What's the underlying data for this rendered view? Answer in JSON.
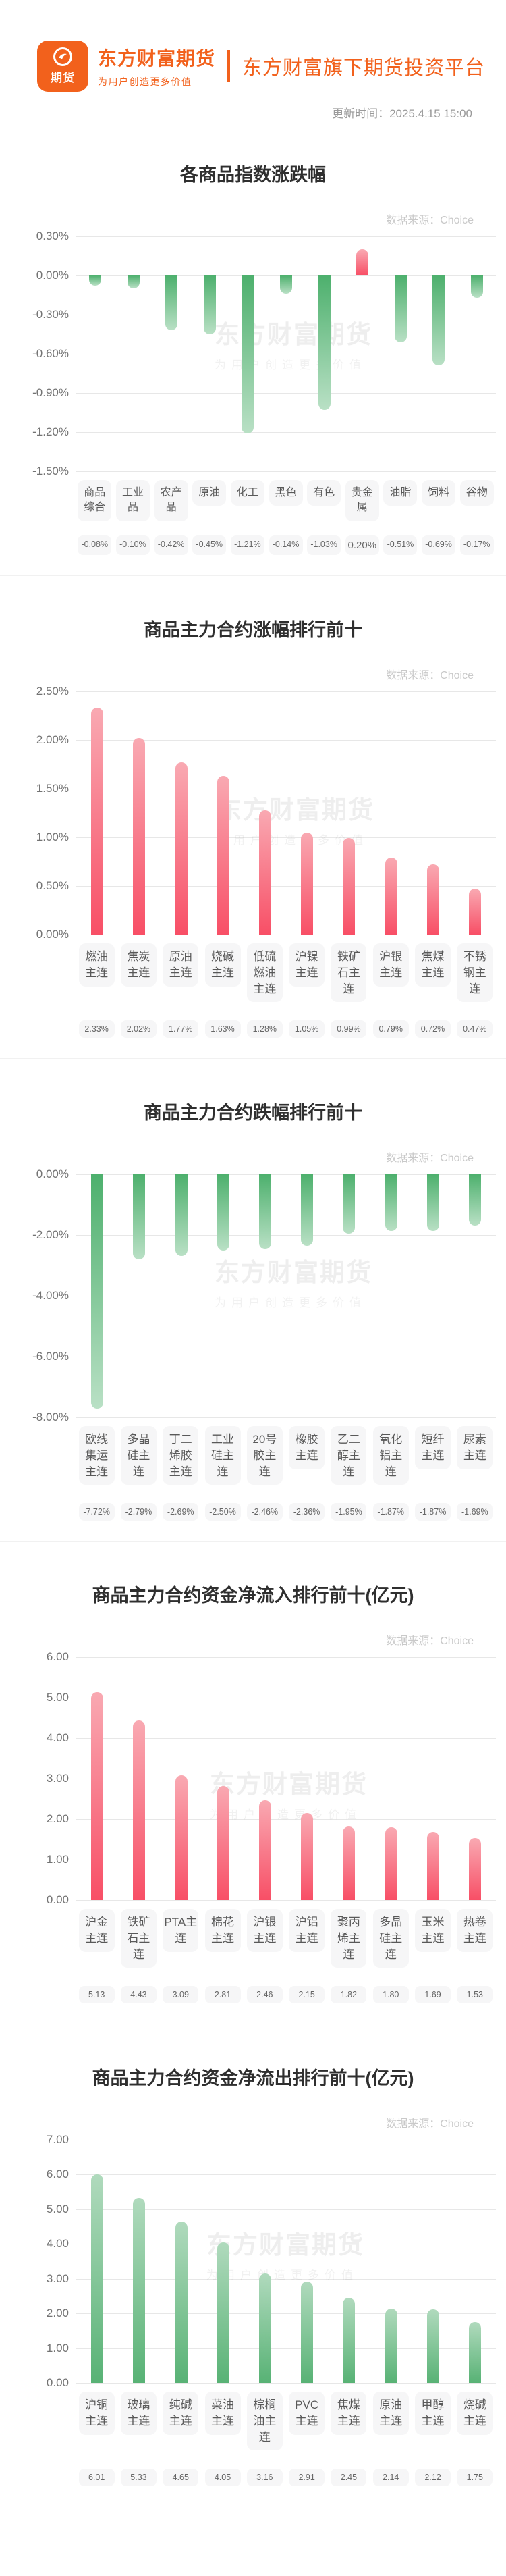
{
  "header": {
    "logo_badge": "期货",
    "brand_name": "东方财富期货",
    "brand_tagline": "为用户创造更多价值",
    "platform_title": "东方财富旗下期货投资平台",
    "update_time": "更新时间：2025.4.15 15:00"
  },
  "watermark": {
    "line1": "东方财富期货",
    "line2": "为用户创造更多价值"
  },
  "colors": {
    "brand_orange": "#f2611c",
    "bar_red_strong": "#f84f66",
    "bar_red_light": "#f9a9b2",
    "bar_green_strong": "#4db06d",
    "bar_green_light": "#b9e0c5"
  },
  "chart_data": [
    {
      "type": "bar",
      "title": "各商品指数涨跌幅",
      "source": "数据来源：Choice",
      "categories": [
        "商品综合",
        "工业品",
        "农产品",
        "原油",
        "化工",
        "黑色",
        "有色",
        "贵金属",
        "油脂",
        "饲料",
        "谷物"
      ],
      "values": [
        -0.08,
        -0.1,
        -0.42,
        -0.45,
        -1.21,
        -0.14,
        -1.03,
        0.2,
        -0.51,
        -0.69,
        -0.17
      ],
      "value_labels": [
        "-0.08%",
        "-0.10%",
        "-0.42%",
        "-0.45%",
        "-1.21%",
        "-0.14%",
        "-1.03%",
        "0.20%",
        "-0.51%",
        "-0.69%",
        "-0.17%"
      ],
      "ylim": [
        -1.5,
        0.3
      ],
      "yticks": [
        0.3,
        0.0,
        -0.3,
        -0.6,
        -0.9,
        -1.2,
        -1.5
      ],
      "ytick_labels": [
        "0.30%",
        "0.00%",
        "-0.30%",
        "-0.60%",
        "-0.90%",
        "-1.20%",
        "-1.50%"
      ],
      "bar_color": "auto",
      "grid": true,
      "legend": false
    },
    {
      "type": "bar",
      "title": "商品主力合约涨幅排行前十",
      "source": "数据来源：Choice",
      "categories": [
        "燃油主连",
        "焦炭主连",
        "原油主连",
        "烧碱主连",
        "低硫燃油主连",
        "沪镍主连",
        "铁矿石主连",
        "沪银主连",
        "焦煤主连",
        "不锈钢主连"
      ],
      "values": [
        2.33,
        2.02,
        1.77,
        1.63,
        1.28,
        1.05,
        0.99,
        0.79,
        0.72,
        0.47
      ],
      "value_labels": [
        "2.33%",
        "2.02%",
        "1.77%",
        "1.63%",
        "1.28%",
        "1.05%",
        "0.99%",
        "0.79%",
        "0.72%",
        "0.47%"
      ],
      "ylim": [
        0,
        2.5
      ],
      "yticks": [
        2.5,
        2.0,
        1.5,
        1.0,
        0.5,
        0.0
      ],
      "ytick_labels": [
        "2.50%",
        "2.00%",
        "1.50%",
        "1.00%",
        "0.50%",
        "0.00%"
      ],
      "bar_color": "red",
      "grid": true,
      "legend": false
    },
    {
      "type": "bar",
      "title": "商品主力合约跌幅排行前十",
      "source": "数据来源：Choice",
      "categories": [
        "欧线集运主连",
        "多晶硅主连",
        "丁二烯胶主连",
        "工业硅主连",
        "20号胶主连",
        "橡胶主连",
        "乙二醇主连",
        "氧化铝主连",
        "短纤主连",
        "尿素主连"
      ],
      "values": [
        -7.72,
        -2.79,
        -2.69,
        -2.5,
        -2.46,
        -2.36,
        -1.95,
        -1.87,
        -1.87,
        -1.69
      ],
      "value_labels": [
        "-7.72%",
        "-2.79%",
        "-2.69%",
        "-2.50%",
        "-2.46%",
        "-2.36%",
        "-1.95%",
        "-1.87%",
        "-1.87%",
        "-1.69%"
      ],
      "ylim": [
        -8,
        0
      ],
      "yticks": [
        0,
        -2,
        -4,
        -6,
        -8
      ],
      "ytick_labels": [
        "0.00%",
        "-2.00%",
        "-4.00%",
        "-6.00%",
        "-8.00%"
      ],
      "bar_color": "green",
      "grid": true,
      "legend": false
    },
    {
      "type": "bar",
      "title": "商品主力合约资金净流入排行前十(亿元)",
      "source": "数据来源：Choice",
      "categories": [
        "沪金主连",
        "铁矿石主连",
        "PTA主连",
        "棉花主连",
        "沪银主连",
        "沪铝主连",
        "聚丙烯主连",
        "多晶硅主连",
        "玉米主连",
        "热卷主连"
      ],
      "values": [
        5.13,
        4.43,
        3.09,
        2.81,
        2.46,
        2.15,
        1.82,
        1.8,
        1.69,
        1.53
      ],
      "value_labels": [
        "5.13",
        "4.43",
        "3.09",
        "2.81",
        "2.46",
        "2.15",
        "1.82",
        "1.80",
        "1.69",
        "1.53"
      ],
      "ylim": [
        0,
        6
      ],
      "yticks": [
        6,
        5,
        4,
        3,
        2,
        1,
        0
      ],
      "ytick_labels": [
        "6.00",
        "5.00",
        "4.00",
        "3.00",
        "2.00",
        "1.00",
        "0.00"
      ],
      "bar_color": "red",
      "grid": true,
      "legend": false
    },
    {
      "type": "bar",
      "title": "商品主力合约资金净流出排行前十(亿元)",
      "source": "数据来源：Choice",
      "categories": [
        "沪铜主连",
        "玻璃主连",
        "纯碱主连",
        "菜油主连",
        "棕榈油主连",
        "PVC主连",
        "焦煤主连",
        "原油主连",
        "甲醇主连",
        "烧碱主连"
      ],
      "values": [
        6.01,
        5.33,
        4.65,
        4.05,
        3.16,
        2.91,
        2.45,
        2.14,
        2.12,
        1.75
      ],
      "value_labels": [
        "6.01",
        "5.33",
        "4.65",
        "4.05",
        "3.16",
        "2.91",
        "2.45",
        "2.14",
        "2.12",
        "1.75"
      ],
      "ylim": [
        0,
        7
      ],
      "yticks": [
        7,
        6,
        5,
        4,
        3,
        2,
        1,
        0
      ],
      "ytick_labels": [
        "7.00",
        "6.00",
        "5.00",
        "4.00",
        "3.00",
        "2.00",
        "1.00",
        "0.00"
      ],
      "bar_color": "green",
      "grid": true,
      "legend": false
    }
  ]
}
